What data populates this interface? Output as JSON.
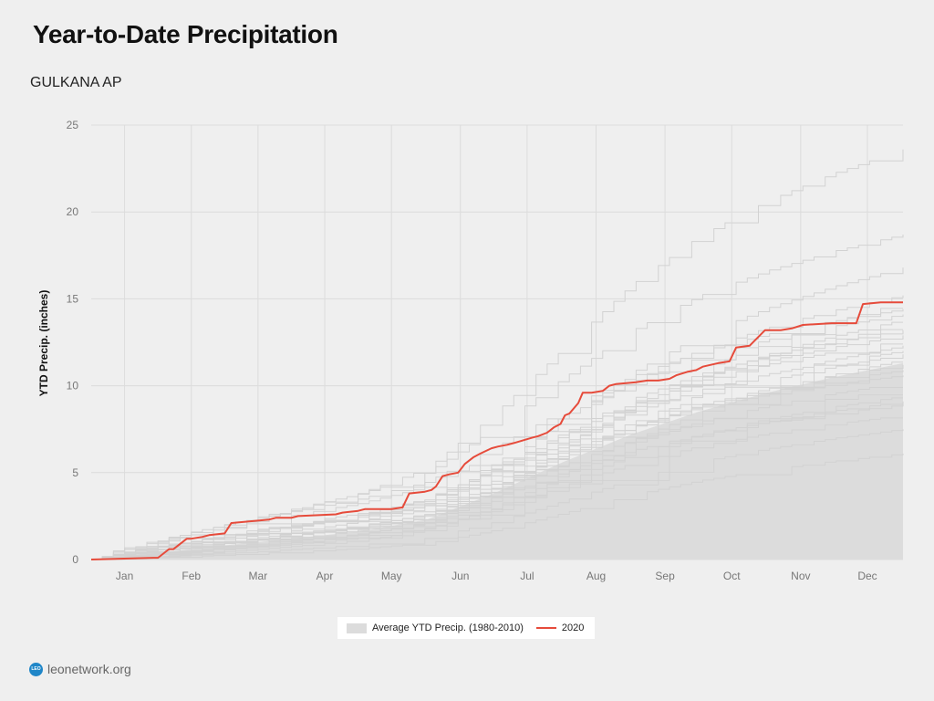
{
  "header": {
    "title": "Year-to-Date Precipitation",
    "subtitle": "GULKANA AP"
  },
  "legend": {
    "average_label": "Average YTD Precip. (1980-2010)",
    "year_label": "2020"
  },
  "brand": {
    "logo_text": "LEO",
    "site": "leonetwork.org"
  },
  "colors": {
    "background": "#efefef",
    "gridline": "#dcdcdc",
    "historical_line": "#d2d2d2",
    "average_fill": "#dcdcdc",
    "year_line": "#e64b3b"
  },
  "chart_data": {
    "type": "line",
    "title": "Year-to-Date Precipitation",
    "subtitle": "GULKANA AP",
    "ylabel": "YTD Precip. (inches)",
    "xlabel": "",
    "ylim": [
      0,
      25
    ],
    "xlim": [
      0,
      365
    ],
    "grid": true,
    "yticks": [
      0,
      5,
      10,
      15,
      20,
      25
    ],
    "xticks": [
      {
        "day": 15,
        "label": "Jan"
      },
      {
        "day": 45,
        "label": "Feb"
      },
      {
        "day": 75,
        "label": "Mar"
      },
      {
        "day": 105,
        "label": "Apr"
      },
      {
        "day": 135,
        "label": "May"
      },
      {
        "day": 166,
        "label": "Jun"
      },
      {
        "day": 196,
        "label": "Jul"
      },
      {
        "day": 227,
        "label": "Aug"
      },
      {
        "day": 258,
        "label": "Sep"
      },
      {
        "day": 288,
        "label": "Oct"
      },
      {
        "day": 319,
        "label": "Nov"
      },
      {
        "day": 349,
        "label": "Dec"
      }
    ],
    "legend": [
      "Average YTD Precip. (1980-2010)",
      "2020"
    ],
    "series": [
      {
        "name": "Average YTD Precip. (1980-2010)",
        "type": "area",
        "x": [
          0,
          31,
          59,
          90,
          120,
          151,
          181,
          212,
          243,
          273,
          304,
          334,
          365
        ],
        "values": [
          0,
          0.4,
          0.8,
          1.2,
          1.6,
          2.3,
          3.8,
          5.6,
          7.2,
          8.5,
          9.6,
          10.5,
          11.3
        ]
      },
      {
        "name": "2020",
        "type": "line",
        "x": [
          0,
          28,
          30,
          35,
          37,
          43,
          45,
          50,
          53,
          60,
          63,
          80,
          83,
          90,
          93,
          110,
          113,
          120,
          123,
          135,
          140,
          143,
          150,
          153,
          155,
          158,
          161,
          165,
          168,
          172,
          175,
          180,
          183,
          187,
          190,
          198,
          201,
          205,
          208,
          211,
          213,
          215,
          219,
          221,
          223,
          225,
          230,
          233,
          236,
          245,
          250,
          255,
          260,
          263,
          268,
          272,
          275,
          282,
          287,
          290,
          296,
          303,
          310,
          315,
          320,
          333,
          344,
          347,
          355,
          365
        ],
        "values": [
          0,
          0.1,
          0.1,
          0.6,
          0.6,
          1.2,
          1.2,
          1.3,
          1.4,
          1.5,
          2.1,
          2.3,
          2.4,
          2.4,
          2.5,
          2.6,
          2.7,
          2.8,
          2.9,
          2.9,
          3.0,
          3.8,
          3.9,
          4.0,
          4.2,
          4.8,
          4.9,
          5.0,
          5.5,
          5.9,
          6.1,
          6.4,
          6.5,
          6.6,
          6.7,
          7.0,
          7.1,
          7.3,
          7.6,
          7.8,
          8.3,
          8.4,
          9.0,
          9.6,
          9.6,
          9.6,
          9.7,
          10.0,
          10.1,
          10.2,
          10.3,
          10.3,
          10.4,
          10.6,
          10.8,
          10.9,
          11.1,
          11.3,
          11.4,
          12.2,
          12.3,
          13.2,
          13.2,
          13.3,
          13.5,
          13.6,
          13.6,
          14.7,
          14.8,
          14.8
        ]
      }
    ],
    "historical_years_final_totals": [
      6.1,
      7.5,
      8.3,
      8.9,
      9.1,
      9.4,
      9.8,
      10.2,
      10.6,
      10.9,
      11.2,
      11.5,
      11.8,
      12.0,
      12.3,
      12.6,
      12.9,
      13.2,
      13.5,
      13.8,
      14.1,
      14.4,
      14.8,
      15.2,
      16.8,
      18.7,
      23.6
    ]
  }
}
